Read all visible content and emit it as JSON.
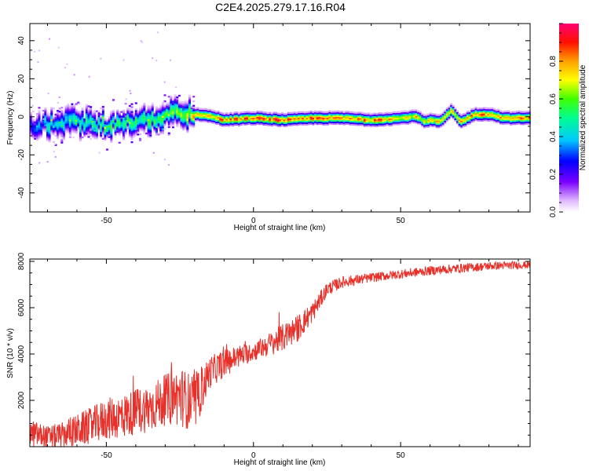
{
  "figure_title": "C2E4.2025.279.17.16.R04",
  "colors": {
    "snr_line": "#e8302a",
    "axis": "#000000",
    "background": "#ffffff"
  },
  "chart_data": [
    {
      "type": "heatmap",
      "title": "",
      "xlabel": "Height of straight line (km)",
      "ylabel": "Frequency (Hz)",
      "xlim": [
        -76,
        94
      ],
      "ylim": [
        -50,
        49
      ],
      "xticks": [
        -50,
        0,
        50
      ],
      "yticks": [
        -40,
        -20,
        0,
        20,
        40
      ],
      "colorbar": {
        "label": "Normalized spectral amplitude",
        "range": [
          0,
          1
        ],
        "ticks": [
          0.0,
          0.2,
          0.4,
          0.6,
          0.8
        ],
        "colormap": "rainbow (white-purple-blue-cyan-green-yellow-orange-red-magenta)"
      },
      "ridge": {
        "description": "dominant frequency track vs height",
        "x": [
          -76,
          -70,
          -60,
          -50,
          -40,
          -30,
          -25,
          -20,
          -15,
          -10,
          0,
          10,
          20,
          30,
          40,
          50,
          55,
          58,
          60,
          63,
          65,
          67,
          70,
          75,
          80,
          85,
          90,
          94
        ],
        "y": [
          -5,
          -4,
          -3,
          -5,
          -2,
          0,
          2,
          1,
          0,
          -2,
          -1,
          -2,
          -1,
          -1,
          -2,
          -1,
          0,
          -3,
          -2,
          -3,
          0,
          3,
          -3,
          1,
          1,
          -1,
          -1,
          -1
        ],
        "peak_amplitude": [
          0.35,
          0.45,
          0.5,
          0.55,
          0.55,
          0.6,
          0.7,
          0.85,
          0.9,
          0.9,
          0.9,
          0.95,
          0.9,
          0.9,
          0.9,
          0.85,
          0.8,
          0.8,
          0.8,
          0.8,
          0.85,
          0.85,
          0.85,
          0.9,
          0.85,
          0.85,
          0.85,
          0.85
        ]
      }
    },
    {
      "type": "line",
      "title": "",
      "xlabel": "Height of straight line (km)",
      "ylabel": "SNR (10 * v/v)",
      "xlim": [
        -76,
        94
      ],
      "ylim": [
        0,
        8100
      ],
      "xticks": [
        -50,
        0,
        50
      ],
      "yticks": [
        2000,
        4000,
        6000,
        8000
      ],
      "series": [
        {
          "envelope_x": [
            -76,
            -70,
            -65,
            -60,
            -55,
            -50,
            -45,
            -40,
            -35,
            -30,
            -25,
            -20,
            -15,
            -10,
            -5,
            0,
            5,
            10,
            15,
            20,
            25,
            30,
            40,
            50,
            60,
            70,
            80,
            94
          ],
          "envelope_y": [
            600,
            400,
            500,
            700,
            900,
            1200,
            1300,
            1500,
            1700,
            2000,
            2200,
            1800,
            3200,
            3600,
            3900,
            4100,
            4400,
            4700,
            5100,
            5800,
            6800,
            7100,
            7300,
            7450,
            7600,
            7700,
            7800,
            7850
          ],
          "noise_amplitude": [
            600,
            500,
            550,
            700,
            800,
            900,
            950,
            1000,
            1050,
            1100,
            1300,
            1200,
            700,
            600,
            500,
            400,
            500,
            600,
            600,
            450,
            300,
            250,
            200,
            200,
            200,
            200,
            180,
            160
          ]
        }
      ]
    }
  ]
}
